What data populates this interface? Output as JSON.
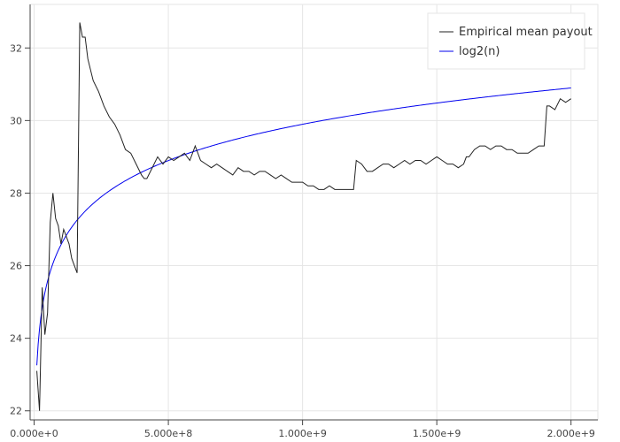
{
  "chart_data": {
    "type": "line",
    "title": "",
    "xlabel": "",
    "ylabel": "",
    "xlim": [
      -15000000.0,
      2100000000.0
    ],
    "ylim": [
      21.75,
      33.2
    ],
    "grid": true,
    "legend_placement": "top-right",
    "x_ticks": [
      0,
      500000000,
      1000000000,
      1500000000,
      2000000000
    ],
    "x_tick_labels": [
      "0.000e+0",
      "5.000e+8",
      "1.000e+9",
      "1.500e+9",
      "2.000e+9"
    ],
    "y_ticks": [
      22,
      24,
      26,
      28,
      30,
      32
    ],
    "y_tick_labels": [
      "22",
      "24",
      "26",
      "28",
      "30",
      "32"
    ],
    "series": [
      {
        "name": "Empirical mean payout",
        "color": "#222222",
        "x": [
          10000000,
          20000000,
          30000000,
          40000000,
          50000000,
          60000000,
          70000000,
          80000000,
          90000000,
          100000000,
          110000000,
          120000000,
          130000000,
          140000000,
          150000000,
          160000000,
          170000000,
          180000000,
          190000000,
          200000000,
          220000000,
          240000000,
          260000000,
          280000000,
          300000000,
          320000000,
          340000000,
          360000000,
          380000000,
          400000000,
          410000000,
          420000000,
          440000000,
          460000000,
          480000000,
          500000000,
          520000000,
          540000000,
          560000000,
          580000000,
          600000000,
          620000000,
          640000000,
          660000000,
          680000000,
          700000000,
          720000000,
          740000000,
          760000000,
          780000000,
          800000000,
          820000000,
          840000000,
          860000000,
          880000000,
          900000000,
          920000000,
          940000000,
          960000000,
          980000000,
          1000000000,
          1020000000,
          1040000000,
          1060000000,
          1080000000,
          1100000000,
          1120000000,
          1140000000,
          1160000000,
          1180000000,
          1190000000,
          1200000000,
          1220000000,
          1240000000,
          1260000000,
          1280000000,
          1300000000,
          1320000000,
          1340000000,
          1360000000,
          1380000000,
          1400000000,
          1420000000,
          1440000000,
          1460000000,
          1480000000,
          1500000000,
          1520000000,
          1540000000,
          1560000000,
          1580000000,
          1600000000,
          1610000000,
          1620000000,
          1640000000,
          1660000000,
          1680000000,
          1700000000,
          1720000000,
          1740000000,
          1760000000,
          1780000000,
          1800000000,
          1820000000,
          1840000000,
          1860000000,
          1880000000,
          1900000000,
          1910000000,
          1920000000,
          1940000000,
          1960000000,
          1980000000,
          2000000000
        ],
        "values": [
          23.1,
          22.0,
          25.4,
          24.1,
          24.7,
          27.2,
          28.0,
          27.3,
          27.1,
          26.6,
          27.0,
          26.8,
          26.6,
          26.2,
          26.0,
          25.8,
          32.7,
          32.3,
          32.3,
          31.7,
          31.1,
          30.8,
          30.4,
          30.1,
          29.9,
          29.6,
          29.2,
          29.1,
          28.8,
          28.5,
          28.4,
          28.4,
          28.7,
          29.0,
          28.8,
          29.0,
          28.9,
          29.0,
          29.1,
          28.9,
          29.3,
          28.9,
          28.8,
          28.7,
          28.8,
          28.7,
          28.6,
          28.5,
          28.7,
          28.6,
          28.6,
          28.5,
          28.6,
          28.6,
          28.5,
          28.4,
          28.5,
          28.4,
          28.3,
          28.3,
          28.3,
          28.2,
          28.2,
          28.1,
          28.1,
          28.2,
          28.1,
          28.1,
          28.1,
          28.1,
          28.1,
          28.9,
          28.8,
          28.6,
          28.6,
          28.7,
          28.8,
          28.8,
          28.7,
          28.8,
          28.9,
          28.8,
          28.9,
          28.9,
          28.8,
          28.9,
          29.0,
          28.9,
          28.8,
          28.8,
          28.7,
          28.8,
          29.0,
          29.0,
          29.2,
          29.3,
          29.3,
          29.2,
          29.3,
          29.3,
          29.2,
          29.2,
          29.1,
          29.1,
          29.1,
          29.2,
          29.3,
          29.3,
          30.4,
          30.4,
          30.3,
          30.6,
          30.5,
          30.6
        ]
      },
      {
        "name": "log2(n)",
        "color": "#0000ee",
        "function": "log2",
        "x_range": [
          10000000,
          2000000000
        ]
      }
    ]
  }
}
